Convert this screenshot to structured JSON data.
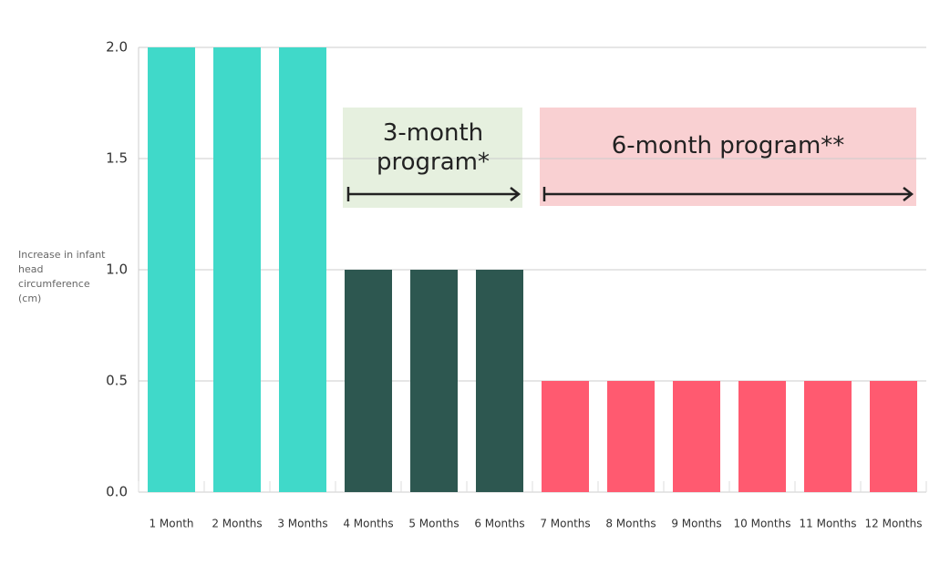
{
  "chart_data": {
    "type": "bar",
    "y_label": "Increase in infant head circumference (cm)",
    "annotations": [
      "3-month program*",
      "6-month program**"
    ],
    "categories": [
      "1 Month",
      "2 Months",
      "3 Months",
      "4 Months",
      "5 Months",
      "6 Months",
      "7 Months",
      "8 Months",
      "9 Months",
      "10 Months",
      "11 Months",
      "12 Months"
    ],
    "values": [
      2,
      2,
      2,
      1,
      1,
      1,
      0.5,
      0.5,
      0.5,
      0.5,
      0.5,
      0.5
    ],
    "colors": [
      "#40d9c9",
      "#40d9c9",
      "#40d9c9",
      "#2d5750",
      "#2d5750",
      "#2d5750",
      "#ff5a70",
      "#ff5a70",
      "#ff5a70",
      "#ff5a70",
      "#ff5a70",
      "#ff5a70"
    ],
    "ylim": [
      0,
      2
    ],
    "yticks": [
      {
        "value": 0,
        "label": "0.0"
      },
      0.5,
      {
        "value": 1,
        "label": "1.0"
      },
      1.5,
      {
        "value": 2,
        "label": "2.0"
      }
    ],
    "grid": true
  }
}
